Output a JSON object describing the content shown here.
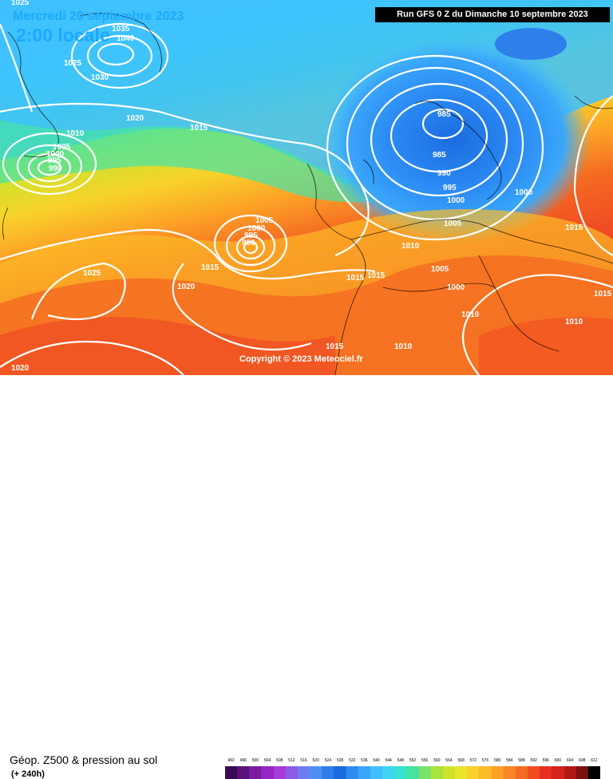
{
  "header": {
    "run": "Run GFS 0 Z du Dimanche 10 septembre 2023",
    "date": "Mercredi 20 septembre 2023",
    "time": "2:00 locale"
  },
  "copyright": "Copyright © 2023 Meteociel.fr",
  "footer": {
    "title": "Géop. Z500 & pression au sol",
    "subtitle": "(+ 240h)"
  },
  "scale": {
    "labels": [
      "492",
      "496",
      "500",
      "504",
      "508",
      "512",
      "516",
      "520",
      "524",
      "528",
      "532",
      "536",
      "540",
      "544",
      "548",
      "552",
      "556",
      "560",
      "564",
      "568",
      "572",
      "576",
      "580",
      "584",
      "588",
      "592",
      "596",
      "600",
      "604",
      "608",
      "612"
    ],
    "colors": [
      "#3b0a55",
      "#5a127a",
      "#7a1ba0",
      "#9426c4",
      "#a83ad8",
      "#8c5ce6",
      "#6e7cf0",
      "#4f8ff5",
      "#2f7fea",
      "#1c6ce0",
      "#2c8cf4",
      "#3aa6fa",
      "#40c0ff",
      "#3ed4f2",
      "#36e2d2",
      "#45e2a0",
      "#7ae26a",
      "#a8e43c",
      "#cce42c",
      "#e8e42a",
      "#f8d22a",
      "#fcba26",
      "#fca026",
      "#f88624",
      "#f46a22",
      "#f04c22",
      "#e83022",
      "#d4221c",
      "#b01818",
      "#7a1010",
      "#000000"
    ]
  },
  "isobar_labels": [
    {
      "v": "1025",
      "id": "a"
    },
    {
      "v": "1035",
      "id": "b"
    },
    {
      "v": "1040",
      "id": "c"
    },
    {
      "v": "1025",
      "id": "d"
    },
    {
      "v": "1030",
      "id": "e"
    },
    {
      "v": "1010",
      "id": "f"
    },
    {
      "v": "1005",
      "id": "g"
    },
    {
      "v": "1000",
      "id": "h"
    },
    {
      "v": "995",
      "id": "i"
    },
    {
      "v": "990",
      "id": "j"
    },
    {
      "v": "1020",
      "id": "k"
    },
    {
      "v": "1015",
      "id": "l"
    },
    {
      "v": "985",
      "id": "m"
    },
    {
      "v": "985",
      "id": "n"
    },
    {
      "v": "990",
      "id": "o"
    },
    {
      "v": "995",
      "id": "p"
    },
    {
      "v": "1000",
      "id": "q"
    },
    {
      "v": "1000",
      "id": "r"
    },
    {
      "v": "1005",
      "id": "s"
    },
    {
      "v": "1015",
      "id": "t"
    },
    {
      "v": "1005",
      "id": "u"
    },
    {
      "v": "1000",
      "id": "v"
    },
    {
      "v": "995",
      "id": "w"
    },
    {
      "v": "990",
      "id": "x"
    },
    {
      "v": "1010",
      "id": "y"
    },
    {
      "v": "1005",
      "id": "z"
    },
    {
      "v": "1000",
      "id": "aa"
    },
    {
      "v": "1015",
      "id": "ab"
    },
    {
      "v": "1015",
      "id": "ac"
    },
    {
      "v": "1015",
      "id": "ad"
    },
    {
      "v": "1025",
      "id": "ae"
    },
    {
      "v": "1020",
      "id": "af"
    },
    {
      "v": "1010",
      "id": "ag"
    },
    {
      "v": "1015",
      "id": "ah"
    },
    {
      "v": "1010",
      "id": "ai"
    },
    {
      "v": "1015",
      "id": "aj"
    },
    {
      "v": "1010",
      "id": "ak"
    },
    {
      "v": "1020",
      "id": "al"
    }
  ]
}
